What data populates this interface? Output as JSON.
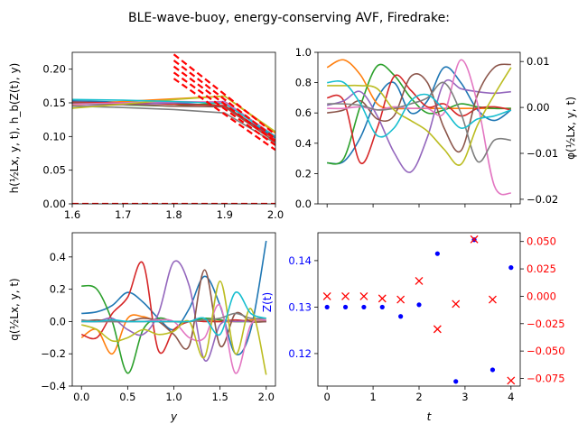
{
  "figure": {
    "title": "BLE-wave-buoy, energy-conserving AVF, Firedrake:"
  },
  "colors": {
    "cycle": [
      "#1f77b4",
      "#ff7f0e",
      "#2ca02c",
      "#d62728",
      "#9467bd",
      "#8c564b",
      "#e377c2",
      "#7f7f7f",
      "#bcbd22",
      "#17becf"
    ],
    "red": "#ff0000",
    "blue": "#0000ff"
  },
  "chart_data": [
    {
      "id": "top-left",
      "type": "line",
      "xlabel": "",
      "ylabel": "h(½Lx, y, t), h_b(Z(t), y)",
      "xlim": [
        1.6,
        2.0
      ],
      "ylim": [
        0.0,
        0.225
      ],
      "xticks": [
        "1.6",
        "1.7",
        "1.8",
        "1.9",
        "2.0"
      ],
      "yticks": [
        "0.00",
        "0.05",
        "0.10",
        "0.15",
        "0.20"
      ],
      "xtick_values": [
        1.6,
        1.7,
        1.8,
        1.9,
        2.0
      ],
      "ytick_values": [
        0,
        0.05,
        0.1,
        0.15,
        0.2
      ],
      "series": [
        {
          "color": "#1f77b4",
          "x": [
            1.6,
            1.7,
            1.8,
            1.9,
            2.0
          ],
          "y": [
            0.153,
            0.151,
            0.15,
            0.145,
            0.098
          ]
        },
        {
          "color": "#ff7f0e",
          "x": [
            1.6,
            1.7,
            1.8,
            1.9,
            2.0
          ],
          "y": [
            0.147,
            0.152,
            0.156,
            0.16,
            0.105
          ]
        },
        {
          "color": "#2ca02c",
          "x": [
            1.6,
            1.7,
            1.8,
            1.9,
            2.0
          ],
          "y": [
            0.149,
            0.147,
            0.145,
            0.15,
            0.1
          ]
        },
        {
          "color": "#d62728",
          "x": [
            1.6,
            1.7,
            1.8,
            1.9,
            2.0
          ],
          "y": [
            0.151,
            0.15,
            0.148,
            0.146,
            0.095
          ]
        },
        {
          "color": "#9467bd",
          "x": [
            1.6,
            1.7,
            1.8,
            1.9,
            2.0
          ],
          "y": [
            0.145,
            0.147,
            0.15,
            0.152,
            0.1
          ]
        },
        {
          "color": "#8c564b",
          "x": [
            1.6,
            1.7,
            1.8,
            1.9,
            2.0
          ],
          "y": [
            0.15,
            0.148,
            0.145,
            0.144,
            0.092
          ]
        },
        {
          "color": "#e377c2",
          "x": [
            1.6,
            1.7,
            1.8,
            1.9,
            2.0
          ],
          "y": [
            0.148,
            0.15,
            0.152,
            0.151,
            0.1
          ]
        },
        {
          "color": "#7f7f7f",
          "x": [
            1.6,
            1.7,
            1.8,
            1.9,
            2.0
          ],
          "y": [
            0.145,
            0.143,
            0.14,
            0.135,
            0.09
          ]
        },
        {
          "color": "#bcbd22",
          "x": [
            1.6,
            1.7,
            1.8,
            1.9,
            2.0
          ],
          "y": [
            0.142,
            0.148,
            0.155,
            0.16,
            0.107
          ]
        },
        {
          "color": "#17becf",
          "x": [
            1.6,
            1.7,
            1.8,
            1.9,
            2.0
          ],
          "y": [
            0.155,
            0.154,
            0.152,
            0.149,
            0.1
          ]
        }
      ],
      "dashed_red": [
        {
          "x": [
            1.8,
            2.0
          ],
          "y": [
            0.222,
            0.103
          ]
        },
        {
          "x": [
            1.8,
            2.0
          ],
          "y": [
            0.213,
            0.097
          ]
        },
        {
          "x": [
            1.8,
            2.0
          ],
          "y": [
            0.204,
            0.092
          ]
        },
        {
          "x": [
            1.8,
            2.0
          ],
          "y": [
            0.195,
            0.087
          ]
        },
        {
          "x": [
            1.8,
            2.0
          ],
          "y": [
            0.186,
            0.08
          ]
        }
      ],
      "baseline_red": {
        "y": 0.0
      }
    },
    {
      "id": "top-right",
      "type": "line",
      "xlabel": "",
      "ylabel": "",
      "right_ylabel": "φ(½Lx, y, t)",
      "xlim": [
        -0.1,
        2.1
      ],
      "ylim": [
        0.0,
        1.0
      ],
      "right_ylim": [
        -0.021,
        0.012
      ],
      "yticks": [
        "0.0",
        "0.2",
        "0.4",
        "0.6",
        "0.8",
        "1.0"
      ],
      "ytick_values": [
        0,
        0.2,
        0.4,
        0.6,
        0.8,
        1.0
      ],
      "right_yticks": [
        "0.01",
        "0.00",
        "−0.01",
        "−0.02"
      ],
      "right_ytick_values": [
        0.01,
        0.0,
        -0.01,
        -0.02
      ],
      "xtick_values": [
        0,
        0.5,
        1.0,
        1.5,
        2.0
      ],
      "series": [
        {
          "color": "#1f77b4",
          "y": [
            0.27,
            0.28,
            0.44,
            0.7,
            0.8,
            0.6,
            0.68,
            0.9,
            0.8,
            0.62,
            0.55,
            0.62
          ]
        },
        {
          "color": "#ff7f0e",
          "y": [
            0.9,
            0.95,
            0.85,
            0.66,
            0.63,
            0.63,
            0.63,
            0.63,
            0.63,
            0.63,
            0.63,
            0.63
          ]
        },
        {
          "color": "#2ca02c",
          "y": [
            0.27,
            0.3,
            0.65,
            0.91,
            0.85,
            0.7,
            0.6,
            0.62,
            0.66,
            0.64,
            0.63,
            0.63
          ]
        },
        {
          "color": "#d62728",
          "y": [
            0.7,
            0.68,
            0.27,
            0.5,
            0.84,
            0.75,
            0.64,
            0.66,
            0.58,
            0.63,
            0.64,
            0.62
          ]
        },
        {
          "color": "#9467bd",
          "y": [
            0.65,
            0.68,
            0.74,
            0.58,
            0.34,
            0.21,
            0.44,
            0.8,
            0.76,
            0.74,
            0.73,
            0.74
          ]
        },
        {
          "color": "#8c564b",
          "y": [
            0.6,
            0.62,
            0.68,
            0.56,
            0.58,
            0.84,
            0.8,
            0.5,
            0.35,
            0.72,
            0.9,
            0.92
          ]
        },
        {
          "color": "#e377c2",
          "y": [
            0.63,
            0.63,
            0.64,
            0.62,
            0.64,
            0.63,
            0.63,
            0.6,
            0.95,
            0.66,
            0.12,
            0.07
          ]
        },
        {
          "color": "#7f7f7f",
          "y": [
            0.66,
            0.66,
            0.65,
            0.62,
            0.63,
            0.66,
            0.7,
            0.8,
            0.6,
            0.28,
            0.42,
            0.42
          ]
        },
        {
          "color": "#bcbd22",
          "y": [
            0.78,
            0.78,
            0.78,
            0.76,
            0.62,
            0.55,
            0.48,
            0.36,
            0.26,
            0.52,
            0.72,
            0.9
          ]
        },
        {
          "color": "#17becf",
          "y": [
            0.8,
            0.8,
            0.66,
            0.45,
            0.5,
            0.68,
            0.72,
            0.62,
            0.5,
            0.56,
            0.58,
            0.62
          ]
        }
      ]
    },
    {
      "id": "bottom-left",
      "type": "line",
      "xlabel": "y",
      "ylabel": "q(½Lx, y, t)",
      "xlim": [
        -0.1,
        2.1
      ],
      "ylim": [
        -0.4,
        0.55
      ],
      "xticks": [
        "0.0",
        "0.5",
        "1.0",
        "1.5",
        "2.0"
      ],
      "xtick_values": [
        0,
        0.5,
        1.0,
        1.5,
        2.0
      ],
      "yticks": [
        "−0.4",
        "−0.2",
        "0.0",
        "0.2",
        "0.4"
      ],
      "ytick_values": [
        -0.4,
        -0.2,
        0.0,
        0.2,
        0.4
      ],
      "series": [
        {
          "color": "#1f77b4",
          "y": [
            0.05,
            0.06,
            0.1,
            0.18,
            0.12,
            0.02,
            -0.05,
            0.08,
            0.28,
            0.1,
            -0.2,
            -0.05,
            0.5
          ]
        },
        {
          "color": "#ff7f0e",
          "y": [
            -0.1,
            -0.05,
            -0.2,
            0.02,
            0.03,
            0.0,
            0.0,
            0.0,
            0.01,
            0.0,
            0.0,
            0.01,
            0.01
          ]
        },
        {
          "color": "#2ca02c",
          "y": [
            0.22,
            0.2,
            0.0,
            -0.32,
            -0.05,
            0.02,
            0.0,
            0.0,
            0.02,
            0.01,
            0.0,
            0.0,
            0.0
          ]
        },
        {
          "color": "#d62728",
          "y": [
            -0.08,
            -0.1,
            0.05,
            0.15,
            0.36,
            -0.18,
            -0.05,
            0.0,
            0.0,
            0.0,
            0.01,
            0.0,
            0.0
          ]
        },
        {
          "color": "#9467bd",
          "y": [
            0.0,
            0.0,
            0.02,
            -0.05,
            -0.08,
            0.05,
            0.37,
            0.22,
            -0.24,
            -0.02,
            0.0,
            0.0,
            0.0
          ]
        },
        {
          "color": "#8c564b",
          "y": [
            0.0,
            0.01,
            0.0,
            0.0,
            0.02,
            0.0,
            -0.08,
            -0.15,
            0.32,
            -0.15,
            0.05,
            0.0,
            0.0
          ]
        },
        {
          "color": "#e377c2",
          "y": [
            0.0,
            0.0,
            0.0,
            0.0,
            0.0,
            0.01,
            0.0,
            -0.1,
            -0.1,
            0.1,
            -0.32,
            -0.02,
            0.01
          ]
        },
        {
          "color": "#7f7f7f",
          "y": [
            0.01,
            0.0,
            0.0,
            0.0,
            0.0,
            0.0,
            0.0,
            0.0,
            0.01,
            0.02,
            0.05,
            0.02,
            0.02
          ]
        },
        {
          "color": "#bcbd22",
          "y": [
            -0.02,
            -0.05,
            -0.12,
            -0.1,
            -0.05,
            -0.08,
            -0.06,
            0.0,
            -0.22,
            0.25,
            -0.2,
            0.08,
            -0.33
          ]
        },
        {
          "color": "#17becf",
          "y": [
            0.0,
            0.0,
            0.01,
            0.0,
            0.0,
            0.0,
            0.0,
            0.0,
            0.02,
            -0.08,
            0.18,
            0.05,
            0.02
          ]
        }
      ]
    },
    {
      "id": "bottom-right",
      "type": "scatter",
      "xlabel": "t",
      "ylabel": "Z(t)",
      "xlim": [
        -0.2,
        4.2
      ],
      "xticks": [
        "0",
        "1",
        "2",
        "3",
        "4"
      ],
      "xtick_values": [
        0,
        1,
        2,
        3,
        4
      ],
      "ylim": [
        0.113,
        0.146
      ],
      "yticks": [
        "0.12",
        "0.13",
        "0.14"
      ],
      "ytick_values": [
        0.12,
        0.13,
        0.14
      ],
      "right_ylim": [
        -0.082,
        0.058
      ],
      "right_yticks": [
        "0.050",
        "0.025",
        "0.000",
        "−0.025",
        "−0.050",
        "−0.075"
      ],
      "right_ytick_values": [
        0.05,
        0.025,
        0.0,
        -0.025,
        -0.05,
        -0.075
      ],
      "t": [
        0.0,
        0.4,
        0.8,
        1.2,
        1.6,
        2.0,
        2.4,
        2.8,
        3.2,
        3.6,
        4.0
      ],
      "z_blue_dots": [
        0.13,
        0.13,
        0.13,
        0.13,
        0.128,
        0.1305,
        0.1415,
        0.114,
        0.1445,
        0.1165,
        0.1385
      ],
      "w_red_x": [
        0.0,
        0.0,
        0.0,
        -0.002,
        -0.003,
        0.014,
        -0.03,
        -0.007,
        0.052,
        -0.003,
        -0.077
      ]
    }
  ]
}
